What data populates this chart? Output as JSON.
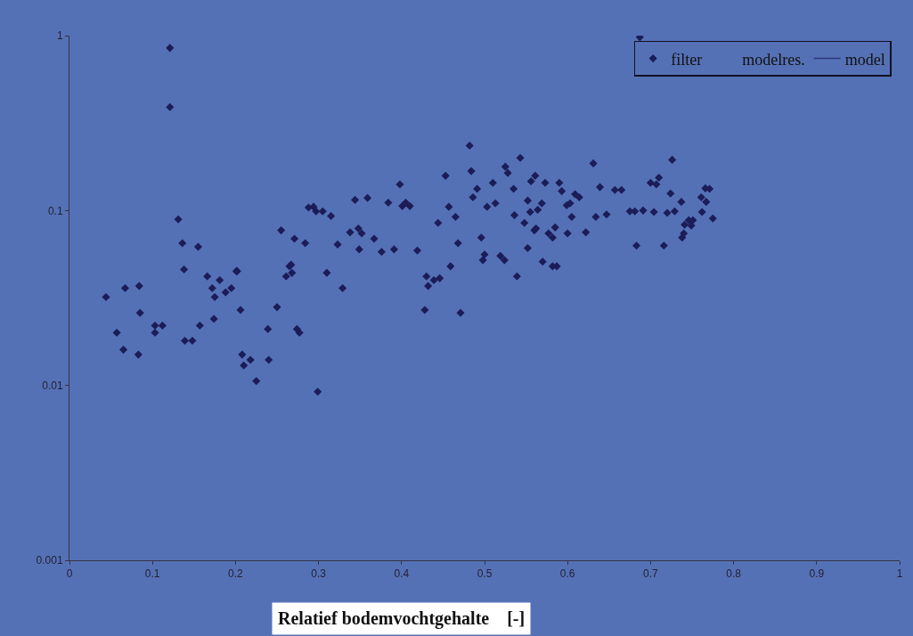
{
  "chart_data": {
    "type": "scatter",
    "xlabel": "Relatief bodemvochtgehalte    [-]",
    "xlim": [
      0,
      1
    ],
    "xticks": [
      0,
      0.1,
      0.2,
      0.3,
      0.4,
      0.5,
      0.6,
      0.7,
      0.8,
      0.9,
      1
    ],
    "ylim": [
      0.001,
      1
    ],
    "yticks": [
      0.001,
      0.01,
      0.1,
      1
    ],
    "log": "y",
    "grid": false,
    "legend": "top right",
    "marker": "diamond",
    "series": [
      {
        "name": "filter",
        "color": "#1c1c58",
        "x": [
          0.044,
          0.057,
          0.067,
          0.065,
          0.084,
          0.085,
          0.083,
          0.103,
          0.112,
          0.103,
          0.121,
          0.121,
          0.131,
          0.136,
          0.138,
          0.139,
          0.148,
          0.155,
          0.157,
          0.166,
          0.172,
          0.175,
          0.174,
          0.181,
          0.188,
          0.195,
          0.202,
          0.201,
          0.206,
          0.208,
          0.21,
          0.218,
          0.225,
          0.24,
          0.239,
          0.25,
          0.255,
          0.261,
          0.265,
          0.267,
          0.268,
          0.271,
          0.274,
          0.277,
          0.284,
          0.288,
          0.294,
          0.297,
          0.299,
          0.305,
          0.31,
          0.315,
          0.323,
          0.329,
          0.338,
          0.344,
          0.348,
          0.349,
          0.352,
          0.359,
          0.367,
          0.376,
          0.384,
          0.391,
          0.398,
          0.401,
          0.405,
          0.41,
          0.419,
          0.428,
          0.43,
          0.432,
          0.439,
          0.444,
          0.446,
          0.453,
          0.457,
          0.459,
          0.465,
          0.468,
          0.471,
          0.482,
          0.484,
          0.486,
          0.491,
          0.496,
          0.498,
          0.5,
          0.503,
          0.51,
          0.513,
          0.519,
          0.524,
          0.525,
          0.528,
          0.535,
          0.536,
          0.539,
          0.543,
          0.548,
          0.552,
          0.552,
          0.556,
          0.56,
          0.561,
          0.564,
          0.569,
          0.573,
          0.57,
          0.577,
          0.582,
          0.585,
          0.59,
          0.593,
          0.599,
          0.587,
          0.6,
          0.605,
          0.609,
          0.614,
          0.622,
          0.631,
          0.634,
          0.639,
          0.647,
          0.657,
          0.665,
          0.675,
          0.681,
          0.683,
          0.687,
          0.691,
          0.7,
          0.707,
          0.71,
          0.716,
          0.72,
          0.726,
          0.724,
          0.729,
          0.737,
          0.738,
          0.741,
          0.74,
          0.746,
          0.749,
          0.751,
          0.761,
          0.762,
          0.767,
          0.766,
          0.771,
          0.775,
          0.704,
          0.555,
          0.582,
          0.603,
          0.562
        ],
        "values": [
          0.032,
          0.02,
          0.036,
          0.016,
          0.037,
          0.026,
          0.015,
          0.022,
          0.022,
          0.02,
          0.85,
          0.39,
          0.089,
          0.065,
          0.046,
          0.018,
          0.018,
          0.062,
          0.022,
          0.042,
          0.036,
          0.032,
          0.024,
          0.04,
          0.034,
          0.036,
          0.045,
          0.045,
          0.027,
          0.015,
          0.013,
          0.014,
          0.0106,
          0.014,
          0.021,
          0.028,
          0.077,
          0.042,
          0.048,
          0.049,
          0.044,
          0.069,
          0.021,
          0.02,
          0.065,
          0.104,
          0.105,
          0.099,
          0.0092,
          0.099,
          0.044,
          0.093,
          0.064,
          0.036,
          0.075,
          0.115,
          0.079,
          0.06,
          0.074,
          0.118,
          0.069,
          0.058,
          0.111,
          0.06,
          0.141,
          0.106,
          0.111,
          0.106,
          0.059,
          0.027,
          0.042,
          0.037,
          0.04,
          0.085,
          0.041,
          0.158,
          0.105,
          0.048,
          0.092,
          0.065,
          0.026,
          0.235,
          0.168,
          0.119,
          0.133,
          0.07,
          0.052,
          0.056,
          0.105,
          0.144,
          0.11,
          0.055,
          0.052,
          0.178,
          0.164,
          0.133,
          0.094,
          0.042,
          0.2,
          0.085,
          0.114,
          0.061,
          0.147,
          0.077,
          0.158,
          0.101,
          0.11,
          0.144,
          0.051,
          0.074,
          0.07,
          0.08,
          0.144,
          0.129,
          0.107,
          0.048,
          0.074,
          0.092,
          0.124,
          0.119,
          0.075,
          0.186,
          0.092,
          0.136,
          0.095,
          0.131,
          0.131,
          0.099,
          0.099,
          0.063,
          0.98,
          0.1,
          0.144,
          0.141,
          0.154,
          0.063,
          0.097,
          0.195,
          0.125,
          0.099,
          0.112,
          0.07,
          0.083,
          0.074,
          0.088,
          0.082,
          0.088,
          0.119,
          0.098,
          0.112,
          0.134,
          0.133,
          0.09,
          0.098,
          0.098,
          0.048,
          0.11,
          0.079
        ]
      },
      {
        "name": "modelres.",
        "type": "scatter"
      },
      {
        "name": "model",
        "color": "#2a3a78",
        "type": "line"
      }
    ]
  }
}
